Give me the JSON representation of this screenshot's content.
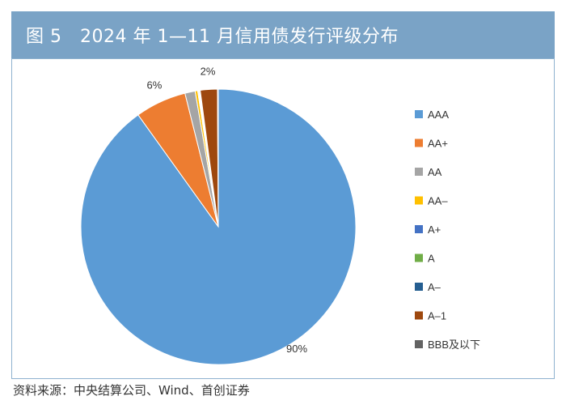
{
  "header": {
    "title": "图 5　2024 年 1—11 月信用债发行评级分布"
  },
  "source": "资料来源：中央结算公司、Wind、首创证券",
  "colors": {
    "header_bg": "#7aa3c6",
    "frame_border": "#8fb2cf"
  },
  "chart_data": {
    "type": "pie",
    "title": "",
    "legend_position": "right",
    "slices": [
      {
        "name": "AAA",
        "value": 90,
        "color": "#5b9bd5",
        "label": "90%"
      },
      {
        "name": "AA+",
        "value": 6,
        "color": "#ed7d31",
        "label": "6%"
      },
      {
        "name": "AA",
        "value": 1.2,
        "color": "#a5a5a5",
        "label": ""
      },
      {
        "name": "AA-",
        "value": 0.3,
        "color": "#ffc000",
        "label": ""
      },
      {
        "name": "A+",
        "value": 0.1,
        "color": "#4472c4",
        "label": ""
      },
      {
        "name": "A",
        "value": 0.1,
        "color": "#70ad47",
        "label": ""
      },
      {
        "name": "A-",
        "value": 0.1,
        "color": "#255e91",
        "label": ""
      },
      {
        "name": "A-1",
        "value": 2,
        "color": "#9e480e",
        "label": "2%"
      },
      {
        "name": "BBB及以下",
        "value": 0.1,
        "color": "#636363",
        "label": ""
      }
    ],
    "legend_labels": [
      "AAA",
      "AA+",
      "AA",
      "AA–",
      "A+",
      "A",
      "A–",
      "A–1",
      "BBB及以下"
    ]
  }
}
